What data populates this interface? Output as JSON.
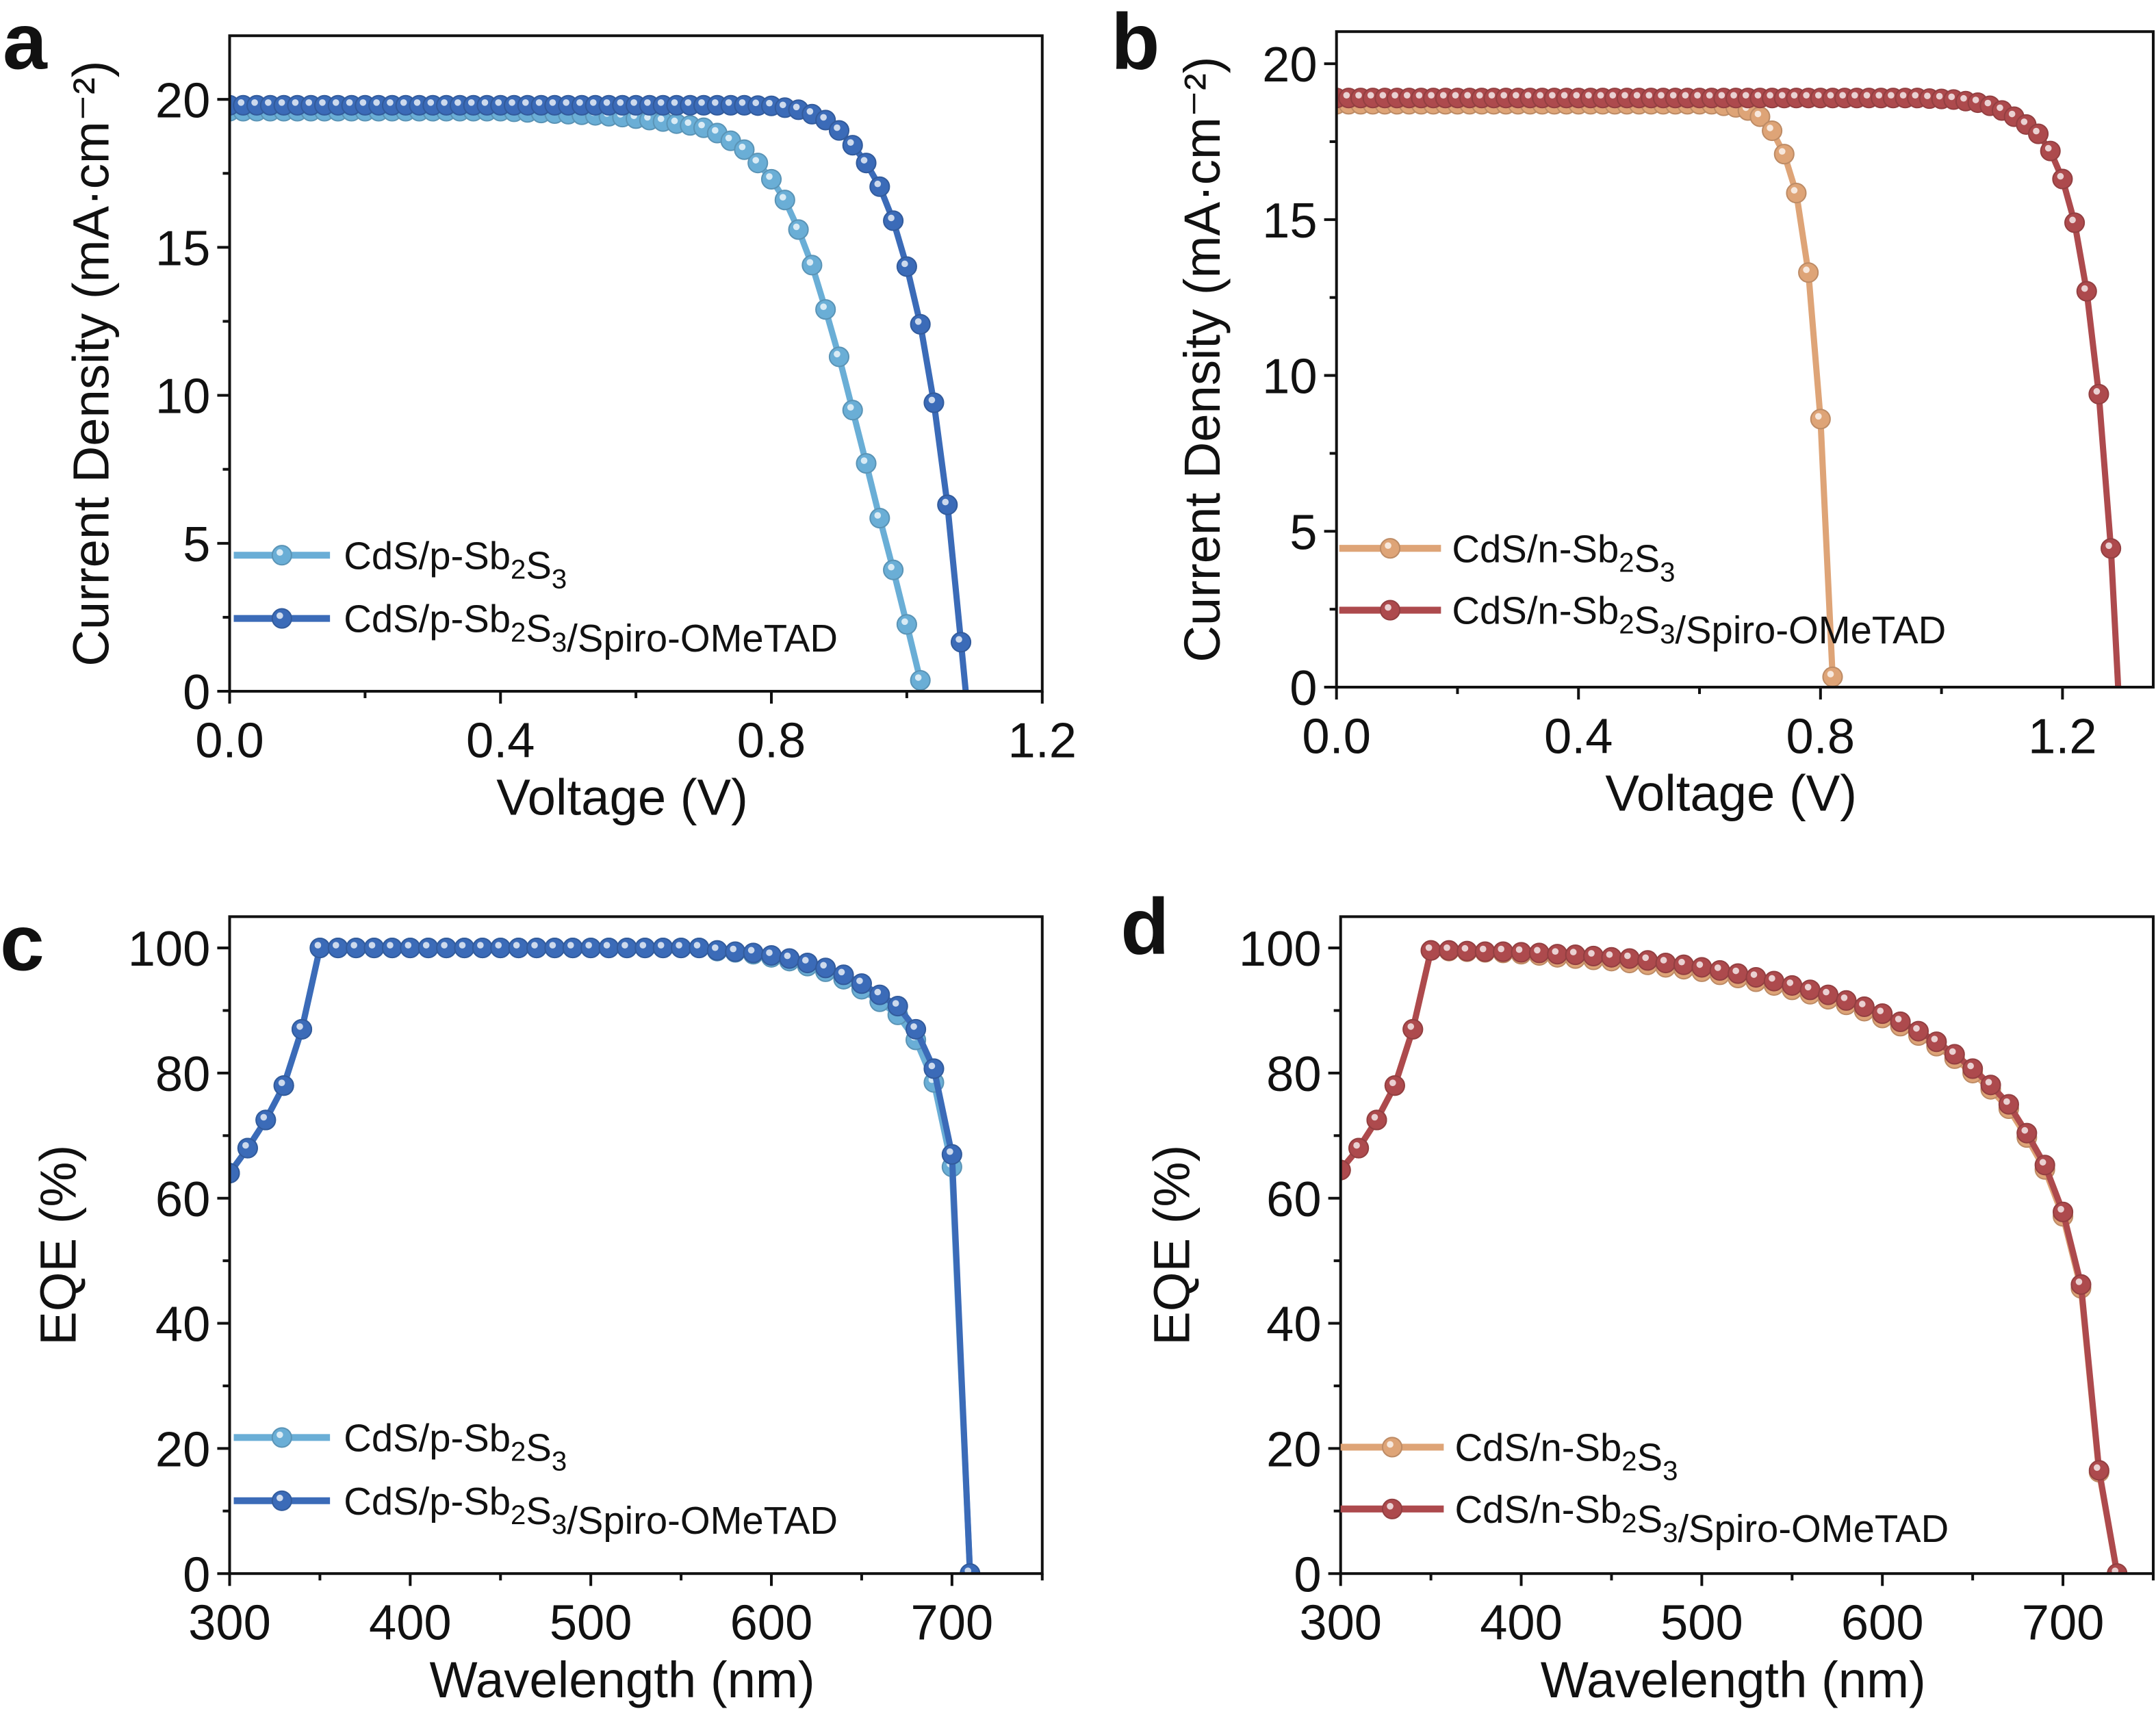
{
  "chart_data": [
    {
      "panel_label": "a",
      "type": "line",
      "xlabel": "Voltage (V)",
      "ylabel": "Current Density (mA·cm⁻²)",
      "xlim": [
        0,
        1.2
      ],
      "ylim": [
        0,
        22.15
      ],
      "x_ticks": [
        0,
        0.4,
        0.8,
        1.2
      ],
      "x_tick_labels": [
        "0.0",
        "0.4",
        "0.8",
        "1.2"
      ],
      "x_minor_ticks": [
        0.2,
        0.6,
        1.0
      ],
      "y_ticks": [
        0,
        5,
        10,
        15,
        20
      ],
      "y_tick_labels": [
        "0",
        "5",
        "10",
        "15",
        "20"
      ],
      "y_minor_ticks": [
        2.5,
        7.5,
        12.5,
        17.5
      ],
      "grid": false,
      "legend_position": "bottom-left",
      "series": [
        {
          "name": "CdS/p-Sb2S3",
          "color": "#6aaed6",
          "x": [
            0,
            0.02,
            0.04,
            0.06,
            0.08,
            0.1,
            0.12,
            0.14,
            0.16,
            0.18,
            0.2,
            0.22,
            0.24,
            0.26,
            0.28,
            0.3,
            0.32,
            0.34,
            0.36,
            0.38,
            0.4,
            0.42,
            0.44,
            0.46,
            0.48,
            0.5,
            0.52,
            0.54,
            0.56,
            0.58,
            0.6,
            0.62,
            0.64,
            0.66,
            0.68,
            0.7,
            0.72,
            0.74,
            0.76,
            0.78,
            0.8,
            0.82,
            0.84,
            0.86,
            0.88,
            0.9,
            0.92,
            0.94,
            0.96,
            0.98,
            1.0,
            1.02
          ],
          "y": [
            19.6,
            19.6,
            19.6,
            19.6,
            19.6,
            19.6,
            19.6,
            19.6,
            19.6,
            19.6,
            19.6,
            19.6,
            19.6,
            19.6,
            19.6,
            19.6,
            19.6,
            19.6,
            19.6,
            19.6,
            19.6,
            19.58,
            19.56,
            19.54,
            19.52,
            19.5,
            19.48,
            19.46,
            19.43,
            19.4,
            19.35,
            19.3,
            19.25,
            19.18,
            19.12,
            19.04,
            18.86,
            18.6,
            18.3,
            17.85,
            17.3,
            16.6,
            15.6,
            14.4,
            12.9,
            11.3,
            9.5,
            7.7,
            5.85,
            4.1,
            2.26,
            0.37
          ]
        },
        {
          "name": "CdS/p-Sb2S3/Spiro-OMeTAD",
          "color": "#3b6bb8",
          "x": [
            0,
            0.02,
            0.04,
            0.06,
            0.08,
            0.1,
            0.12,
            0.14,
            0.16,
            0.18,
            0.2,
            0.22,
            0.24,
            0.26,
            0.28,
            0.3,
            0.32,
            0.34,
            0.36,
            0.38,
            0.4,
            0.42,
            0.44,
            0.46,
            0.48,
            0.5,
            0.52,
            0.54,
            0.56,
            0.58,
            0.6,
            0.62,
            0.64,
            0.66,
            0.68,
            0.7,
            0.72,
            0.74,
            0.76,
            0.78,
            0.8,
            0.82,
            0.84,
            0.86,
            0.88,
            0.9,
            0.92,
            0.94,
            0.96,
            0.98,
            1.0,
            1.02,
            1.04,
            1.06,
            1.08
          ],
          "y": [
            19.8,
            19.8,
            19.8,
            19.8,
            19.8,
            19.8,
            19.8,
            19.8,
            19.8,
            19.8,
            19.8,
            19.8,
            19.8,
            19.8,
            19.8,
            19.8,
            19.8,
            19.8,
            19.8,
            19.8,
            19.8,
            19.8,
            19.8,
            19.8,
            19.8,
            19.8,
            19.8,
            19.8,
            19.8,
            19.8,
            19.8,
            19.8,
            19.8,
            19.8,
            19.8,
            19.8,
            19.8,
            19.8,
            19.8,
            19.79,
            19.78,
            19.72,
            19.65,
            19.5,
            19.3,
            18.95,
            18.45,
            17.85,
            17.05,
            15.9,
            14.35,
            12.4,
            9.75,
            6.3,
            1.66
          ],
          "line_end": [
            1.087,
            0
          ]
        }
      ]
    },
    {
      "panel_label": "b",
      "type": "line",
      "xlabel": "Voltage (V)",
      "ylabel": "Current Density (mA·cm⁻²)",
      "xlim": [
        0,
        1.35
      ],
      "ylim": [
        0,
        21.03
      ],
      "x_ticks": [
        0,
        0.4,
        0.8,
        1.2
      ],
      "x_tick_labels": [
        "0.0",
        "0.4",
        "0.8",
        "1.2"
      ],
      "x_minor_ticks": [
        0.2,
        0.6,
        1.0
      ],
      "y_ticks": [
        0,
        5,
        10,
        15,
        20
      ],
      "y_tick_labels": [
        "0",
        "5",
        "10",
        "15",
        "20"
      ],
      "y_minor_ticks": [
        2.5,
        7.5,
        12.5,
        17.5
      ],
      "grid": false,
      "legend_position": "bottom-left",
      "series": [
        {
          "name": "CdS/n-Sb2S3",
          "color": "#dea477",
          "x": [
            0,
            0.02,
            0.04,
            0.06,
            0.08,
            0.1,
            0.12,
            0.14,
            0.16,
            0.18,
            0.2,
            0.22,
            0.24,
            0.26,
            0.28,
            0.3,
            0.32,
            0.34,
            0.36,
            0.38,
            0.4,
            0.42,
            0.44,
            0.46,
            0.48,
            0.5,
            0.52,
            0.54,
            0.56,
            0.58,
            0.6,
            0.62,
            0.64,
            0.66,
            0.68,
            0.7,
            0.72,
            0.74,
            0.76,
            0.78,
            0.8,
            0.82
          ],
          "y": [
            18.7,
            18.7,
            18.7,
            18.7,
            18.7,
            18.7,
            18.7,
            18.7,
            18.7,
            18.7,
            18.7,
            18.7,
            18.7,
            18.7,
            18.7,
            18.7,
            18.7,
            18.7,
            18.7,
            18.7,
            18.7,
            18.7,
            18.7,
            18.7,
            18.7,
            18.7,
            18.7,
            18.7,
            18.7,
            18.7,
            18.7,
            18.7,
            18.65,
            18.6,
            18.5,
            18.3,
            17.85,
            17.1,
            15.85,
            13.3,
            8.6,
            0.33
          ]
        },
        {
          "name": "CdS/n-Sb2S3/Spiro-OMeTAD",
          "color": "#ad4a4d",
          "x": [
            0,
            0.02,
            0.04,
            0.06,
            0.08,
            0.1,
            0.12,
            0.14,
            0.16,
            0.18,
            0.2,
            0.22,
            0.24,
            0.26,
            0.28,
            0.3,
            0.32,
            0.34,
            0.36,
            0.38,
            0.4,
            0.42,
            0.44,
            0.46,
            0.48,
            0.5,
            0.52,
            0.54,
            0.56,
            0.58,
            0.6,
            0.62,
            0.64,
            0.66,
            0.68,
            0.7,
            0.72,
            0.74,
            0.76,
            0.78,
            0.8,
            0.82,
            0.84,
            0.86,
            0.88,
            0.9,
            0.92,
            0.94,
            0.96,
            0.98,
            1.0,
            1.02,
            1.04,
            1.06,
            1.08,
            1.1,
            1.12,
            1.14,
            1.16,
            1.18,
            1.2,
            1.22,
            1.24,
            1.26,
            1.28
          ],
          "y": [
            18.9,
            18.9,
            18.9,
            18.9,
            18.9,
            18.9,
            18.9,
            18.9,
            18.9,
            18.9,
            18.9,
            18.9,
            18.9,
            18.9,
            18.9,
            18.9,
            18.9,
            18.9,
            18.9,
            18.9,
            18.9,
            18.9,
            18.9,
            18.9,
            18.9,
            18.9,
            18.9,
            18.9,
            18.9,
            18.9,
            18.9,
            18.9,
            18.9,
            18.9,
            18.9,
            18.9,
            18.9,
            18.9,
            18.9,
            18.9,
            18.9,
            18.9,
            18.9,
            18.9,
            18.9,
            18.9,
            18.9,
            18.9,
            18.9,
            18.88,
            18.87,
            18.85,
            18.8,
            18.75,
            18.65,
            18.5,
            18.3,
            18.05,
            17.75,
            17.2,
            16.3,
            14.9,
            12.7,
            9.4,
            4.45
          ],
          "line_end": [
            1.292,
            0
          ]
        }
      ]
    },
    {
      "panel_label": "c",
      "type": "line",
      "xlabel": "Wavelength (nm)",
      "ylabel": "EQE (%)",
      "xlim": [
        300,
        750
      ],
      "ylim": [
        0,
        105
      ],
      "x_ticks": [
        300,
        400,
        500,
        600,
        700
      ],
      "x_tick_labels": [
        "300",
        "400",
        "500",
        "600",
        "700"
      ],
      "x_minor_ticks": [
        350,
        450,
        550,
        650,
        750
      ],
      "y_ticks": [
        0,
        20,
        40,
        60,
        80,
        100
      ],
      "y_tick_labels": [
        "0",
        "20",
        "40",
        "60",
        "80",
        "100"
      ],
      "y_minor_ticks": [
        10,
        30,
        50,
        70,
        90
      ],
      "grid": false,
      "legend_position": "bottom-left",
      "series": [
        {
          "name": "CdS/p-Sb2S3",
          "color": "#6aaed6",
          "x": [
            300,
            310,
            320,
            330,
            340,
            350,
            360,
            370,
            380,
            390,
            400,
            410,
            420,
            430,
            440,
            450,
            460,
            470,
            480,
            490,
            500,
            510,
            520,
            530,
            540,
            550,
            560,
            570,
            580,
            590,
            600,
            610,
            620,
            630,
            640,
            650,
            660,
            670,
            680,
            690,
            700,
            710
          ],
          "y": [
            64,
            68,
            72.5,
            78,
            87,
            100,
            100,
            100,
            100,
            100,
            100,
            100,
            100,
            100,
            100,
            100,
            100,
            100,
            100,
            100,
            100,
            100,
            100,
            100,
            100,
            100,
            100,
            99.5,
            99.3,
            99,
            98.5,
            97.9,
            97.1,
            96.2,
            95,
            93.4,
            91.4,
            89.3,
            85.3,
            78.5,
            65,
            0
          ]
        },
        {
          "name": "CdS/p-Sb2S3/Spiro-OMeTAD",
          "color": "#3b6bb8",
          "x": [
            300,
            310,
            320,
            330,
            340,
            350,
            360,
            370,
            380,
            390,
            400,
            410,
            420,
            430,
            440,
            450,
            460,
            470,
            480,
            490,
            500,
            510,
            520,
            530,
            540,
            550,
            560,
            570,
            580,
            590,
            600,
            610,
            620,
            630,
            640,
            650,
            660,
            670,
            680,
            690,
            700,
            710
          ],
          "y": [
            64,
            68,
            72.5,
            78,
            87,
            100,
            100,
            100,
            100,
            100,
            100,
            100,
            100,
            100,
            100,
            100,
            100,
            100,
            100,
            100,
            100,
            100,
            100,
            100,
            100,
            100,
            100,
            99.6,
            99.4,
            99.2,
            98.8,
            98.3,
            97.6,
            96.8,
            95.7,
            94.3,
            92.5,
            90.7,
            87,
            80.7,
            67,
            0
          ]
        }
      ]
    },
    {
      "panel_label": "d",
      "type": "line",
      "xlabel": "Wavelength (nm)",
      "ylabel": "EQE (%)",
      "xlim": [
        300,
        750
      ],
      "ylim": [
        0,
        105
      ],
      "x_ticks": [
        300,
        400,
        500,
        600,
        700
      ],
      "x_tick_labels": [
        "300",
        "400",
        "500",
        "600",
        "700"
      ],
      "x_minor_ticks": [
        350,
        450,
        550,
        650,
        750
      ],
      "y_ticks": [
        0,
        20,
        40,
        60,
        80,
        100
      ],
      "y_tick_labels": [
        "0",
        "20",
        "40",
        "60",
        "80",
        "100"
      ],
      "y_minor_ticks": [
        10,
        30,
        50,
        70,
        90
      ],
      "grid": false,
      "legend_position": "bottom-left",
      "series": [
        {
          "name": "CdS/n-Sb2S3",
          "color": "#dea477",
          "x": [
            300,
            310,
            320,
            330,
            340,
            350,
            360,
            370,
            380,
            390,
            400,
            410,
            420,
            430,
            440,
            450,
            460,
            470,
            480,
            490,
            500,
            510,
            520,
            530,
            540,
            550,
            560,
            570,
            580,
            590,
            600,
            610,
            620,
            630,
            640,
            650,
            660,
            670,
            680,
            690,
            700,
            710,
            720,
            730
          ],
          "y": [
            64.5,
            68,
            72.5,
            78,
            87,
            99.6,
            99.5,
            99.4,
            99.3,
            99.2,
            99,
            98.8,
            98.5,
            98.3,
            98.1,
            97.9,
            97.6,
            97.3,
            96.9,
            96.6,
            96.2,
            95.7,
            95.2,
            94.6,
            94,
            93.3,
            92.6,
            91.8,
            90.9,
            89.9,
            88.8,
            87.5,
            86,
            84.3,
            82.3,
            80,
            77.4,
            74.3,
            69.7,
            64.6,
            57.1,
            45.6,
            16.2,
            0
          ]
        },
        {
          "name": "CdS/n-Sb2S3/Spiro-OMeTAD",
          "color": "#ad4a4d",
          "x": [
            300,
            310,
            320,
            330,
            340,
            350,
            360,
            370,
            380,
            390,
            400,
            410,
            420,
            430,
            440,
            450,
            460,
            470,
            480,
            490,
            500,
            510,
            520,
            530,
            540,
            550,
            560,
            570,
            580,
            590,
            600,
            610,
            620,
            630,
            640,
            650,
            660,
            670,
            680,
            690,
            700,
            710,
            720,
            730
          ],
          "y": [
            64.5,
            68,
            72.5,
            78,
            87,
            99.6,
            99.6,
            99.5,
            99.4,
            99.4,
            99.3,
            99.2,
            99,
            98.9,
            98.7,
            98.5,
            98.3,
            98,
            97.6,
            97.3,
            96.9,
            96.4,
            95.9,
            95.3,
            94.7,
            94,
            93.3,
            92.5,
            91.6,
            90.6,
            89.5,
            88.2,
            86.7,
            85,
            83,
            80.7,
            78.1,
            75,
            70.4,
            65.3,
            57.8,
            46.2,
            16.5,
            0
          ]
        }
      ]
    }
  ]
}
